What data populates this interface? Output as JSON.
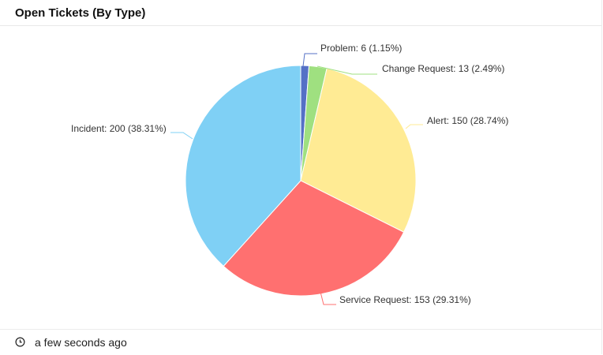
{
  "header": {
    "title": "Open Tickets (By Type)"
  },
  "footer": {
    "icon": "clock-icon",
    "updated": "a few seconds ago"
  },
  "labels": {
    "problem": "Problem: 6 (1.15%)",
    "change_request": "Change Request: 13 (2.49%)",
    "alert": "Alert: 150 (28.74%)",
    "service_request": "Service Request: 153 (29.31%)",
    "incident": "Incident: 200 (38.31%)"
  },
  "chart_data": {
    "type": "pie",
    "title": "Open Tickets (By Type)",
    "categories": [
      "Problem",
      "Change Request",
      "Alert",
      "Service Request",
      "Incident"
    ],
    "values": [
      6,
      13,
      150,
      153,
      200
    ],
    "percentages": [
      1.15,
      2.49,
      28.74,
      29.31,
      38.31
    ],
    "colors": [
      "#5470c6",
      "#9fe080",
      "#ffeb94",
      "#ff7070",
      "#7fd0f5"
    ],
    "start_angle": "12 o'clock",
    "direction": "clockwise",
    "legend": "none (outside slice labels with leader lines)"
  }
}
